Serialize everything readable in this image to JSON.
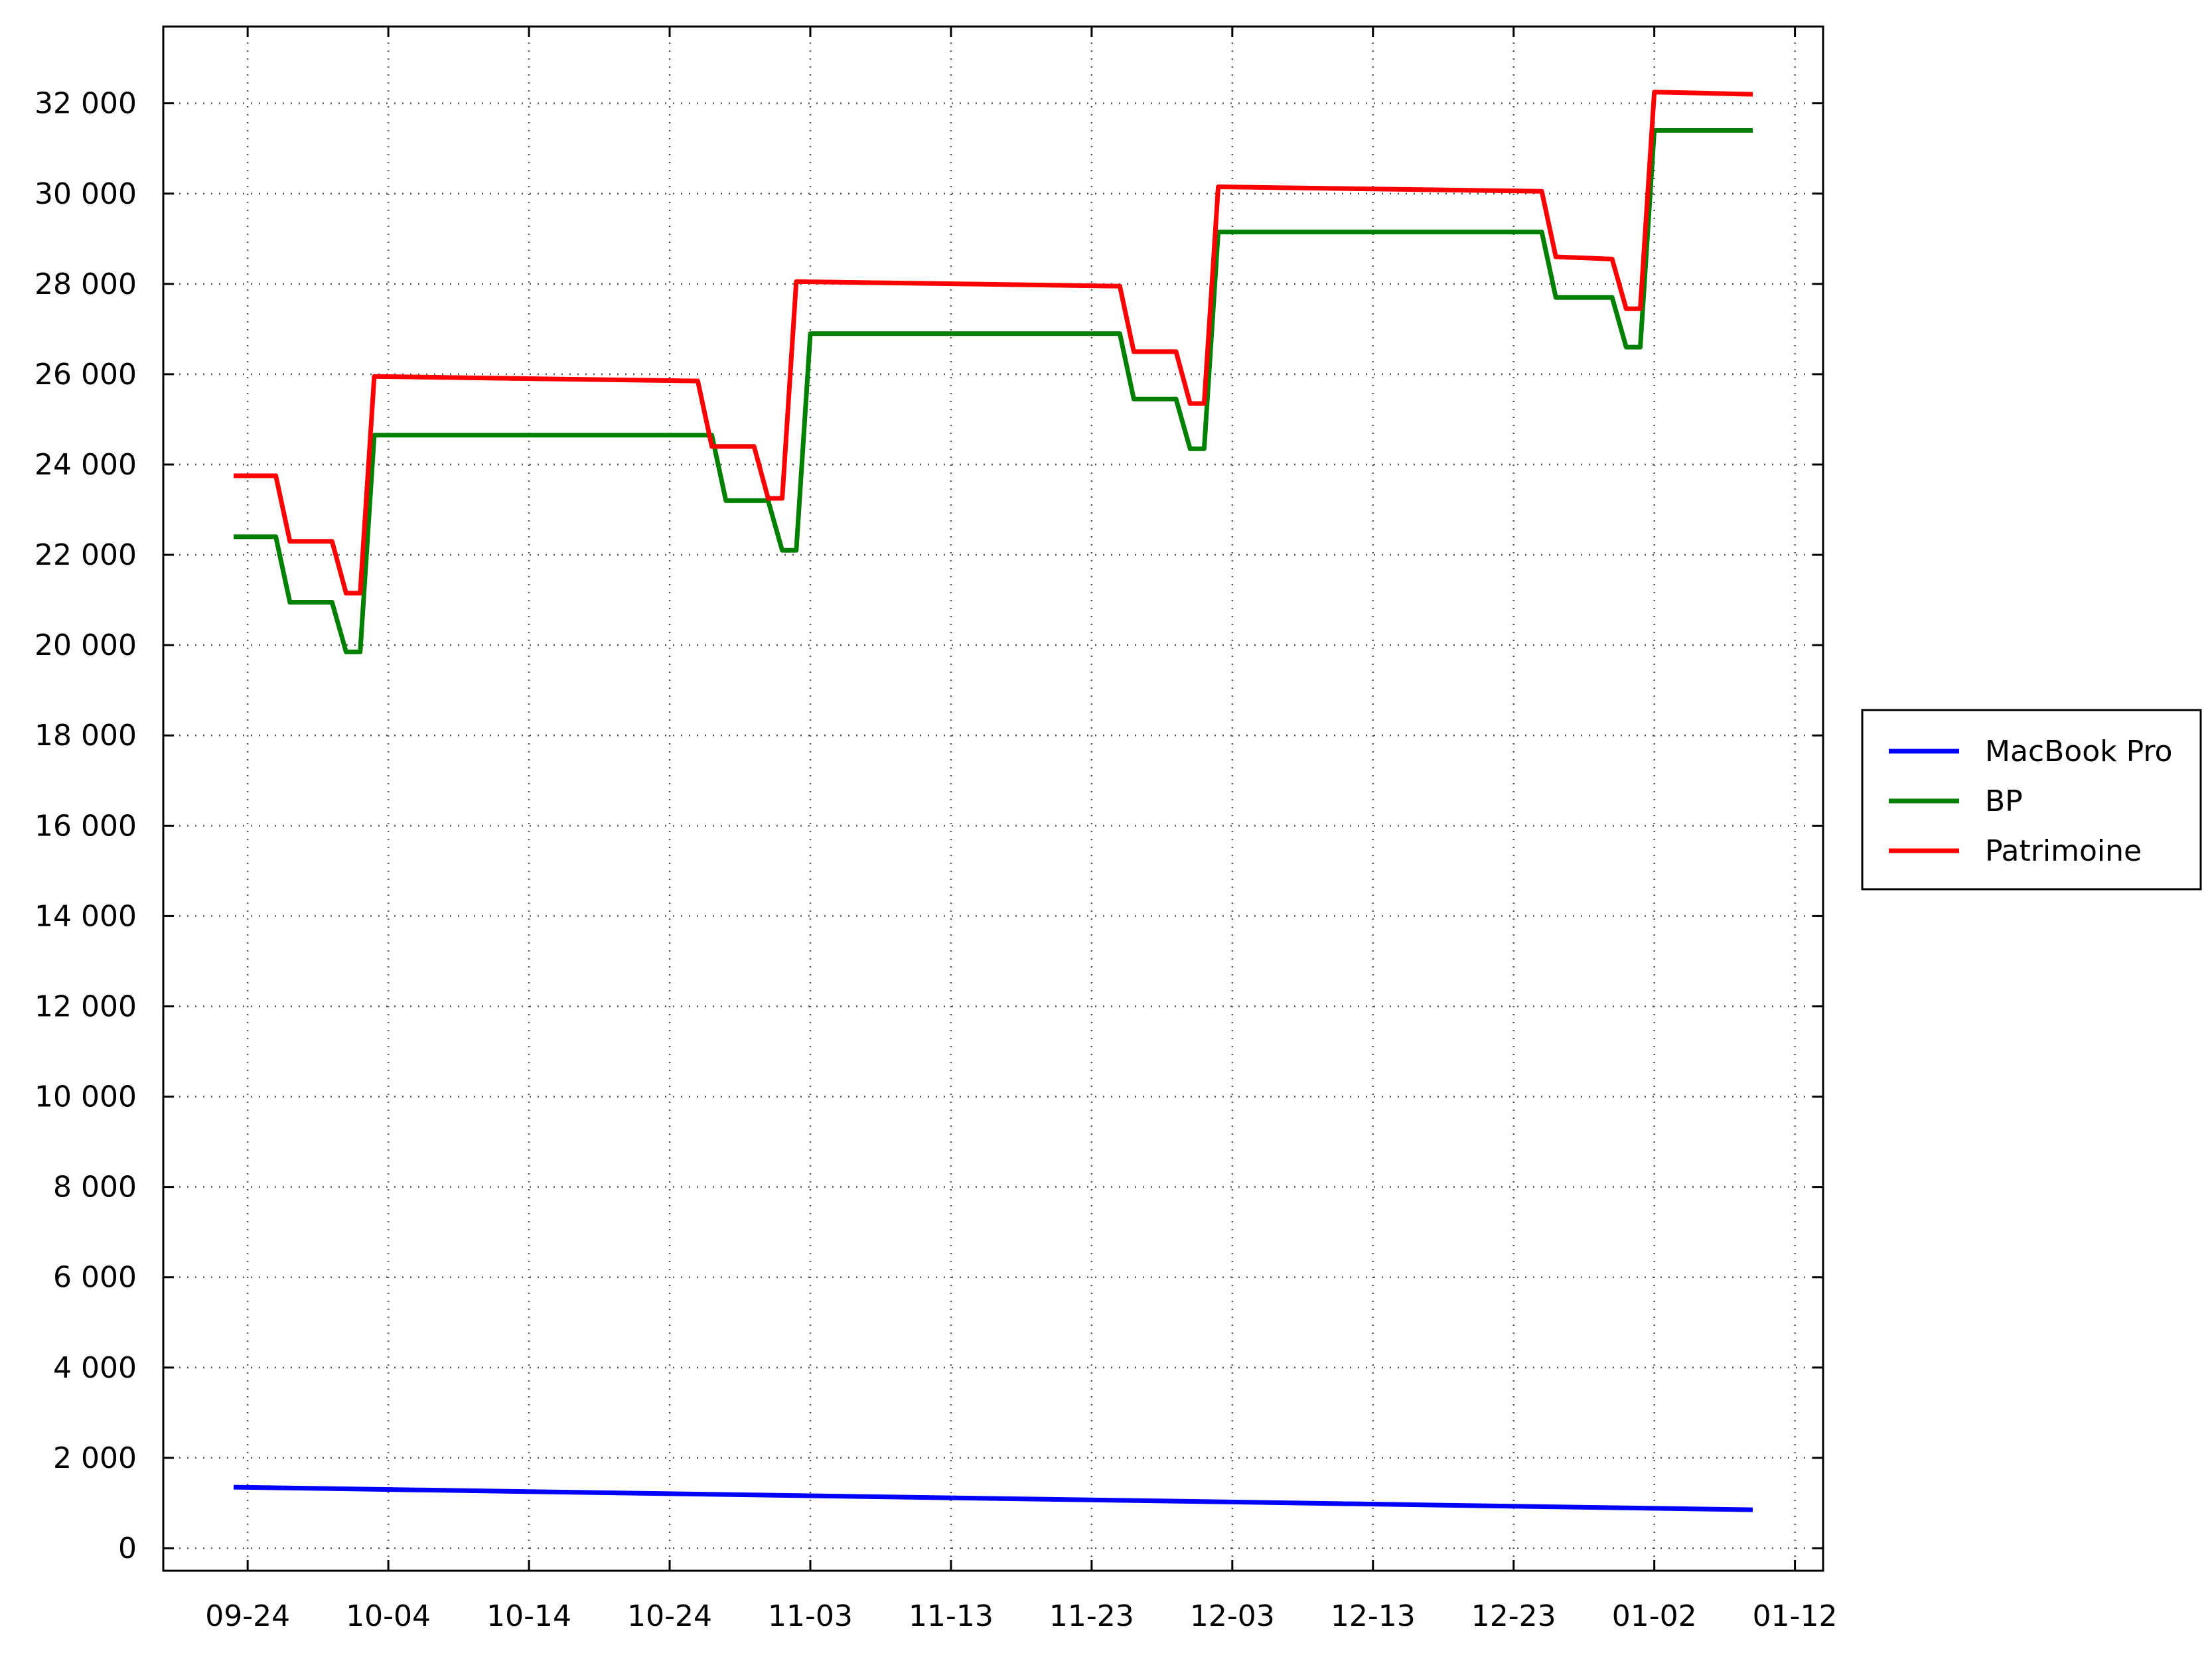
{
  "chart_data": {
    "type": "line",
    "title": "",
    "xlabel": "",
    "ylabel": "",
    "x_tick_labels": [
      "09-24",
      "10-04",
      "10-14",
      "10-24",
      "11-03",
      "11-13",
      "11-23",
      "12-03",
      "12-13",
      "12-23",
      "01-02",
      "01-12"
    ],
    "y_tick_labels": [
      "0",
      "2 000",
      "4 000",
      "6 000",
      "8 000",
      "10 000",
      "12 000",
      "14 000",
      "16 000",
      "18 000",
      "20 000",
      "22 000",
      "24 000",
      "26 000",
      "28 000",
      "30 000",
      "32 000"
    ],
    "xlim": [
      "2023-09-18",
      "2024-01-14"
    ],
    "ylim": [
      -500,
      33700
    ],
    "grid": true,
    "legend_position": "right",
    "series": [
      {
        "name": "MacBook Pro",
        "color": "#0000ff",
        "points": [
          [
            "2023-09-23",
            1350
          ],
          [
            "2024-01-09",
            850
          ]
        ]
      },
      {
        "name": "BP",
        "color": "#008000",
        "points": [
          [
            "2023-09-23",
            22400
          ],
          [
            "2023-09-26",
            22400
          ],
          [
            "2023-09-27",
            20950
          ],
          [
            "2023-09-30",
            20950
          ],
          [
            "2023-10-01",
            19850
          ],
          [
            "2023-10-02",
            19850
          ],
          [
            "2023-10-03",
            24650
          ],
          [
            "2023-10-27",
            24650
          ],
          [
            "2023-10-28",
            23200
          ],
          [
            "2023-10-31",
            23200
          ],
          [
            "2023-11-01",
            22100
          ],
          [
            "2023-11-02",
            22100
          ],
          [
            "2023-11-03",
            26900
          ],
          [
            "2023-11-25",
            26900
          ],
          [
            "2023-11-26",
            25450
          ],
          [
            "2023-11-29",
            25450
          ],
          [
            "2023-11-30",
            24350
          ],
          [
            "2023-12-01",
            24350
          ],
          [
            "2023-12-02",
            29150
          ],
          [
            "2023-12-25",
            29150
          ],
          [
            "2023-12-26",
            27700
          ],
          [
            "2023-12-30",
            27700
          ],
          [
            "2023-12-31",
            26600
          ],
          [
            "2024-01-01",
            26600
          ],
          [
            "2024-01-02",
            31400
          ],
          [
            "2024-01-09",
            31400
          ]
        ]
      },
      {
        "name": "Patrimoine",
        "color": "#ff0000",
        "points": [
          [
            "2023-09-23",
            23750
          ],
          [
            "2023-09-26",
            23750
          ],
          [
            "2023-09-27",
            22300
          ],
          [
            "2023-09-30",
            22300
          ],
          [
            "2023-10-01",
            21150
          ],
          [
            "2023-10-02",
            21150
          ],
          [
            "2023-10-03",
            25950
          ],
          [
            "2023-10-26",
            25850
          ],
          [
            "2023-10-27",
            24400
          ],
          [
            "2023-10-30",
            24400
          ],
          [
            "2023-10-31",
            23250
          ],
          [
            "2023-11-01",
            23250
          ],
          [
            "2023-11-02",
            28050
          ],
          [
            "2023-11-25",
            27950
          ],
          [
            "2023-11-26",
            26500
          ],
          [
            "2023-11-29",
            26500
          ],
          [
            "2023-11-30",
            25350
          ],
          [
            "2023-12-01",
            25350
          ],
          [
            "2023-12-02",
            30150
          ],
          [
            "2023-12-25",
            30050
          ],
          [
            "2023-12-26",
            28600
          ],
          [
            "2023-12-30",
            28550
          ],
          [
            "2023-12-31",
            27450
          ],
          [
            "2024-01-01",
            27450
          ],
          [
            "2024-01-02",
            32250
          ],
          [
            "2024-01-09",
            32200
          ]
        ]
      }
    ]
  }
}
